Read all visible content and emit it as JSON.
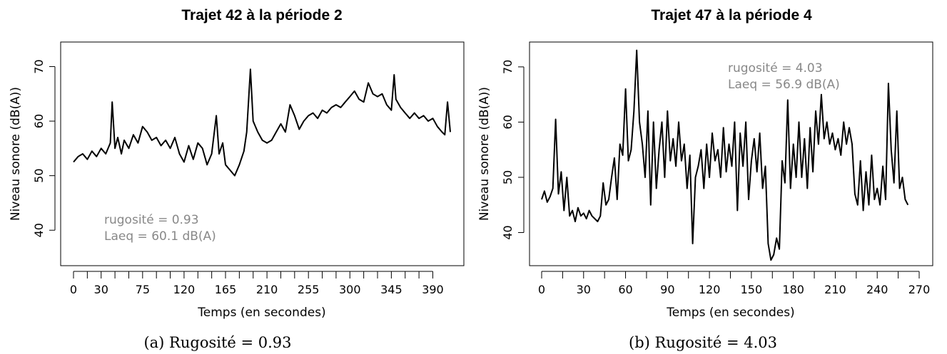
{
  "chart_data": [
    {
      "type": "line",
      "title": "Trajet 42 à la période 2",
      "xlabel": "Temps (en secondes)",
      "ylabel": "Niveau sonore (dB(A))",
      "x_ticks": [
        0,
        30,
        75,
        120,
        165,
        210,
        255,
        300,
        345,
        390
      ],
      "y_ticks": [
        40,
        50,
        60,
        70
      ],
      "xlim": [
        0,
        409
      ],
      "ylim": [
        33.5,
        74.5
      ],
      "grid": false,
      "annotation": [
        "rugosité = 0.93",
        "Laeq = 60.1 dB(A)"
      ],
      "annotation_position": "bottom-left",
      "caption": "(a)  Rugosité = 0.93",
      "line_color": "#000000",
      "series": [
        {
          "x": [
            0,
            5,
            10,
            15,
            20,
            25,
            30,
            35,
            40,
            42,
            45,
            48,
            52,
            55,
            60,
            65,
            70,
            75,
            80,
            85,
            90,
            95,
            100,
            105,
            110,
            115,
            120,
            125,
            130,
            135,
            140,
            145,
            150,
            155,
            158,
            162,
            165,
            170,
            175,
            180,
            185,
            188,
            192,
            195,
            200,
            205,
            210,
            215,
            220,
            225,
            230,
            235,
            240,
            245,
            250,
            255,
            260,
            265,
            270,
            275,
            280,
            285,
            290,
            295,
            300,
            305,
            310,
            315,
            320,
            325,
            330,
            335,
            340,
            345,
            348,
            350,
            355,
            360,
            365,
            370,
            375,
            380,
            385,
            390,
            395,
            400,
            403,
            406,
            409
          ],
          "y": [
            52.5,
            53.5,
            54,
            53,
            54.5,
            53.5,
            55,
            54,
            56,
            63.5,
            55,
            57,
            54,
            56.5,
            55,
            57.5,
            56,
            59,
            58,
            56.5,
            57,
            55.5,
            56.5,
            55,
            57,
            54,
            52.5,
            55.5,
            53,
            56,
            55,
            52,
            54,
            61,
            54,
            56,
            52,
            51,
            50,
            52,
            54.5,
            58,
            69.5,
            60,
            58,
            56.5,
            56,
            56.5,
            58,
            59.5,
            58,
            63,
            61,
            58.5,
            60,
            61,
            61.5,
            60.5,
            62,
            61.5,
            62.5,
            63,
            62.5,
            63.5,
            64.5,
            65.5,
            64,
            63.5,
            67,
            65,
            64.5,
            65,
            63,
            62,
            68.5,
            64,
            62.5,
            61.5,
            60.5,
            61.5,
            60.5,
            61,
            60,
            60.5,
            59,
            58,
            57.5,
            63.5,
            58
          ]
        }
      ]
    },
    {
      "type": "line",
      "title": "Trajet 47 à la période 4",
      "xlabel": "Temps (en secondes)",
      "ylabel": "Niveau sonore (dB(A))",
      "x_ticks": [
        0,
        30,
        60,
        90,
        120,
        150,
        180,
        210,
        240,
        270
      ],
      "y_ticks": [
        40,
        50,
        60,
        70
      ],
      "xlim": [
        0,
        270
      ],
      "ylim": [
        34,
        74.5
      ],
      "grid": false,
      "annotation": [
        "rugosité = 4.03",
        "Laeq = 56.9 dB(A)"
      ],
      "annotation_position": "top-right",
      "caption": "(b)  Rugosité = 4.03",
      "line_color": "#000000",
      "series": [
        {
          "x": [
            0,
            2,
            4,
            6,
            8,
            10,
            12,
            14,
            16,
            18,
            20,
            22,
            24,
            26,
            28,
            30,
            32,
            34,
            36,
            38,
            40,
            42,
            44,
            46,
            48,
            50,
            52,
            54,
            56,
            58,
            60,
            62,
            64,
            66,
            68,
            70,
            72,
            74,
            76,
            78,
            80,
            82,
            84,
            86,
            88,
            90,
            92,
            94,
            96,
            98,
            100,
            102,
            104,
            106,
            108,
            110,
            112,
            114,
            116,
            118,
            120,
            122,
            124,
            126,
            128,
            130,
            132,
            134,
            136,
            138,
            140,
            142,
            144,
            146,
            148,
            150,
            152,
            154,
            156,
            158,
            160,
            162,
            164,
            166,
            168,
            170,
            172,
            174,
            176,
            178,
            180,
            182,
            184,
            186,
            188,
            190,
            192,
            194,
            196,
            198,
            200,
            202,
            204,
            206,
            208,
            210,
            212,
            214,
            216,
            218,
            220,
            222,
            224,
            226,
            228,
            230,
            232,
            234,
            236,
            238,
            240,
            242,
            244,
            246,
            248,
            250,
            252,
            254,
            256,
            258,
            260,
            262
          ],
          "y": [
            46,
            47.5,
            45.5,
            46.5,
            48,
            60.5,
            47,
            51,
            44,
            50,
            43,
            44,
            42,
            44.5,
            43,
            43.5,
            42.5,
            44,
            43,
            42.5,
            42,
            43,
            49,
            45,
            46,
            50,
            53.5,
            46,
            56,
            54,
            66,
            53,
            55,
            62,
            73,
            60,
            56,
            50,
            62,
            45,
            60,
            48,
            55,
            60,
            50,
            62,
            53,
            57,
            52,
            60,
            53,
            56,
            48,
            54,
            38,
            50,
            52,
            55,
            48,
            56,
            50,
            58,
            53,
            55,
            50,
            59,
            51,
            56,
            52,
            60,
            44,
            58,
            52,
            60,
            46,
            53,
            57,
            51,
            58,
            48,
            52,
            38,
            35,
            36,
            39,
            37,
            53,
            49,
            64,
            48,
            56,
            50,
            60,
            50,
            57,
            48,
            59,
            51,
            62,
            56,
            65,
            57,
            60,
            56,
            58,
            55,
            57,
            54,
            60,
            56,
            59,
            56,
            47,
            45,
            53,
            44,
            51,
            45,
            54,
            46,
            48,
            45,
            52,
            46,
            67,
            55,
            49,
            62,
            48,
            50,
            46,
            45
          ]
        }
      ]
    }
  ]
}
